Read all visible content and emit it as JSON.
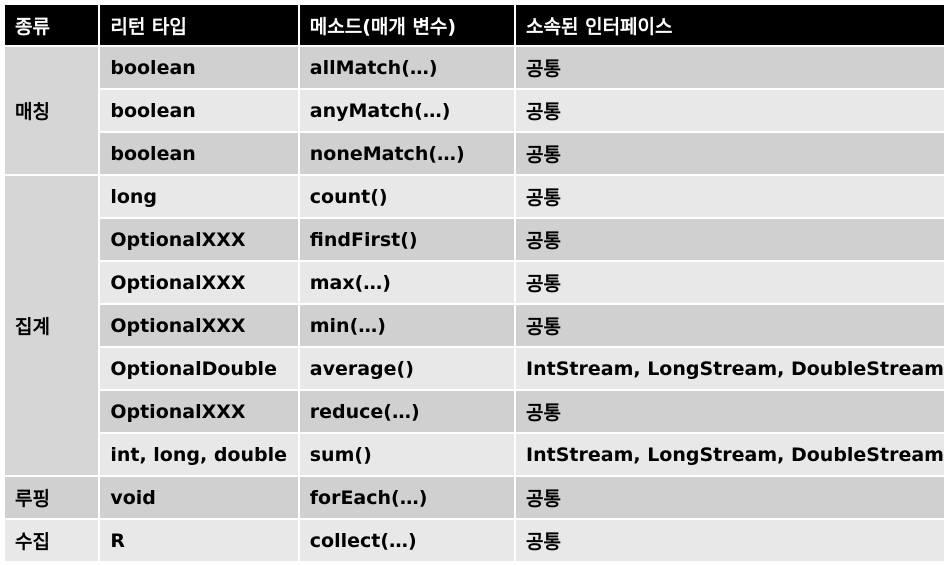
{
  "header": [
    "종류",
    "리턴 타입",
    "메소드(매개 변수)",
    "소속된 인터페이스"
  ],
  "groups": [
    {
      "category": "매칭",
      "rows": [
        [
          "boolean",
          "allMatch(…)",
          "공통"
        ],
        [
          "boolean",
          "anyMatch(…)",
          "공통"
        ],
        [
          "boolean",
          "noneMatch(…)",
          "공통"
        ]
      ]
    },
    {
      "category": "집계",
      "rows": [
        [
          "long",
          "count()",
          "공통"
        ],
        [
          "OptionalXXX",
          "findFirst()",
          "공통"
        ],
        [
          "OptionalXXX",
          "max(…)",
          "공통"
        ],
        [
          "OptionalXXX",
          "min(…)",
          "공통"
        ],
        [
          "OptionalDouble",
          "average()",
          "IntStream, LongStream, DoubleStream"
        ],
        [
          "OptionalXXX",
          "reduce(…)",
          "공통"
        ],
        [
          "int, long, double",
          "sum()",
          "IntStream, LongStream, DoubleStream"
        ]
      ]
    },
    {
      "category": "루핑",
      "rows": [
        [
          "void",
          "forEach(…)",
          "공통"
        ]
      ]
    },
    {
      "category": "수집",
      "rows": [
        [
          "R",
          "collect(…)",
          "공통"
        ]
      ]
    }
  ],
  "colors": {
    "header_bg": "#000000",
    "header_fg": "#ffffff",
    "row_dark": "#d0d0d0",
    "row_light": "#e8e8e8"
  }
}
